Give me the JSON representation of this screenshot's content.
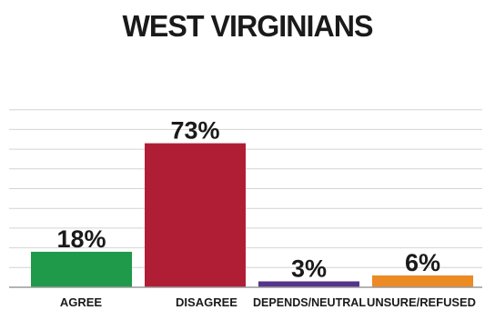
{
  "chart_data": {
    "type": "bar",
    "title": "WEST VIRGINIANS",
    "categories": [
      "AGREE",
      "DISAGREE",
      "DEPENDS/NEUTRAL",
      "UNSURE/REFUSED"
    ],
    "values": [
      18,
      73,
      3,
      6
    ],
    "value_labels": [
      "18%",
      "73%",
      "3%",
      "6%"
    ],
    "colors": [
      "#1e9a4a",
      "#b01e35",
      "#54348c",
      "#ec8a24"
    ],
    "ylim": [
      0,
      100
    ],
    "grid": true,
    "legend": "none"
  }
}
